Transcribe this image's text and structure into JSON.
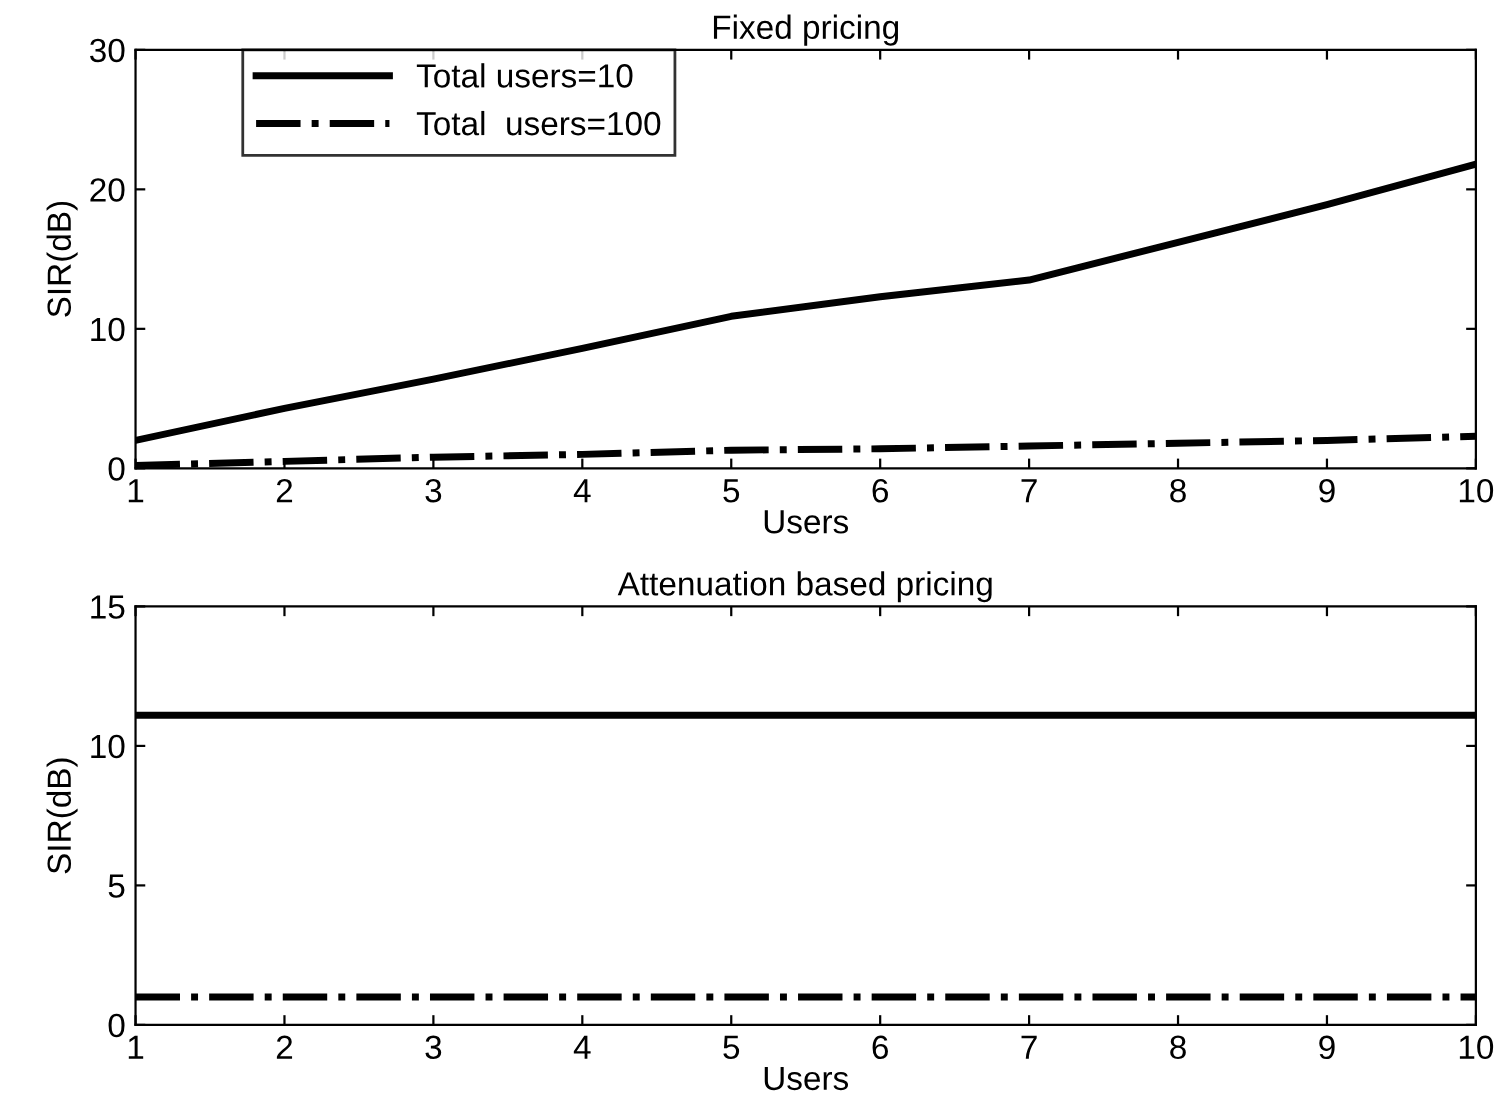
{
  "chart_data": [
    {
      "type": "line",
      "title": "Fixed pricing",
      "xlabel": "Users",
      "ylabel": "SIR(dB)",
      "xlim": [
        1,
        10
      ],
      "xticks": [
        1,
        2,
        3,
        4,
        5,
        6,
        7,
        8,
        9,
        10
      ],
      "ylim": [
        0,
        30
      ],
      "yticks": [
        0,
        10,
        20,
        30
      ],
      "grid": false,
      "legend": "top left",
      "marker": "none",
      "x": [
        1,
        2,
        3,
        4,
        5,
        6,
        7,
        8,
        9,
        10
      ],
      "series": [
        {
          "name": "Total users=10",
          "color": "#000000",
          "line_style": "solid",
          "values": [
            2.0,
            4.3,
            6.4,
            8.6,
            10.9,
            12.3,
            13.5,
            16.2,
            18.9,
            21.8
          ]
        },
        {
          "name": "Total  users=100",
          "color": "#000000",
          "line_style": "dashdot",
          "values": [
            0.2,
            0.5,
            0.8,
            1.0,
            1.3,
            1.4,
            1.6,
            1.8,
            2.0,
            2.3
          ]
        }
      ]
    },
    {
      "type": "line",
      "title": "Attenuation based pricing",
      "xlabel": "Users",
      "ylabel": "SIR(dB)",
      "xlim": [
        1,
        10
      ],
      "xticks": [
        1,
        2,
        3,
        4,
        5,
        6,
        7,
        8,
        9,
        10
      ],
      "ylim": [
        0,
        15
      ],
      "yticks": [
        0,
        5,
        10,
        15
      ],
      "grid": false,
      "legend": false,
      "marker": "none",
      "x": [
        1,
        2,
        3,
        4,
        5,
        6,
        7,
        8,
        9,
        10
      ],
      "series": [
        {
          "color": "#000000",
          "line_style": "solid",
          "values": [
            11.1,
            11.1,
            11.1,
            11.1,
            11.1,
            11.1,
            11.1,
            11.1,
            11.1,
            11.1
          ]
        },
        {
          "color": "#000000",
          "line_style": "dashdot",
          "values": [
            1.0,
            1.0,
            1.0,
            1.0,
            1.0,
            1.0,
            1.0,
            1.0,
            1.0,
            1.0
          ]
        }
      ]
    }
  ]
}
